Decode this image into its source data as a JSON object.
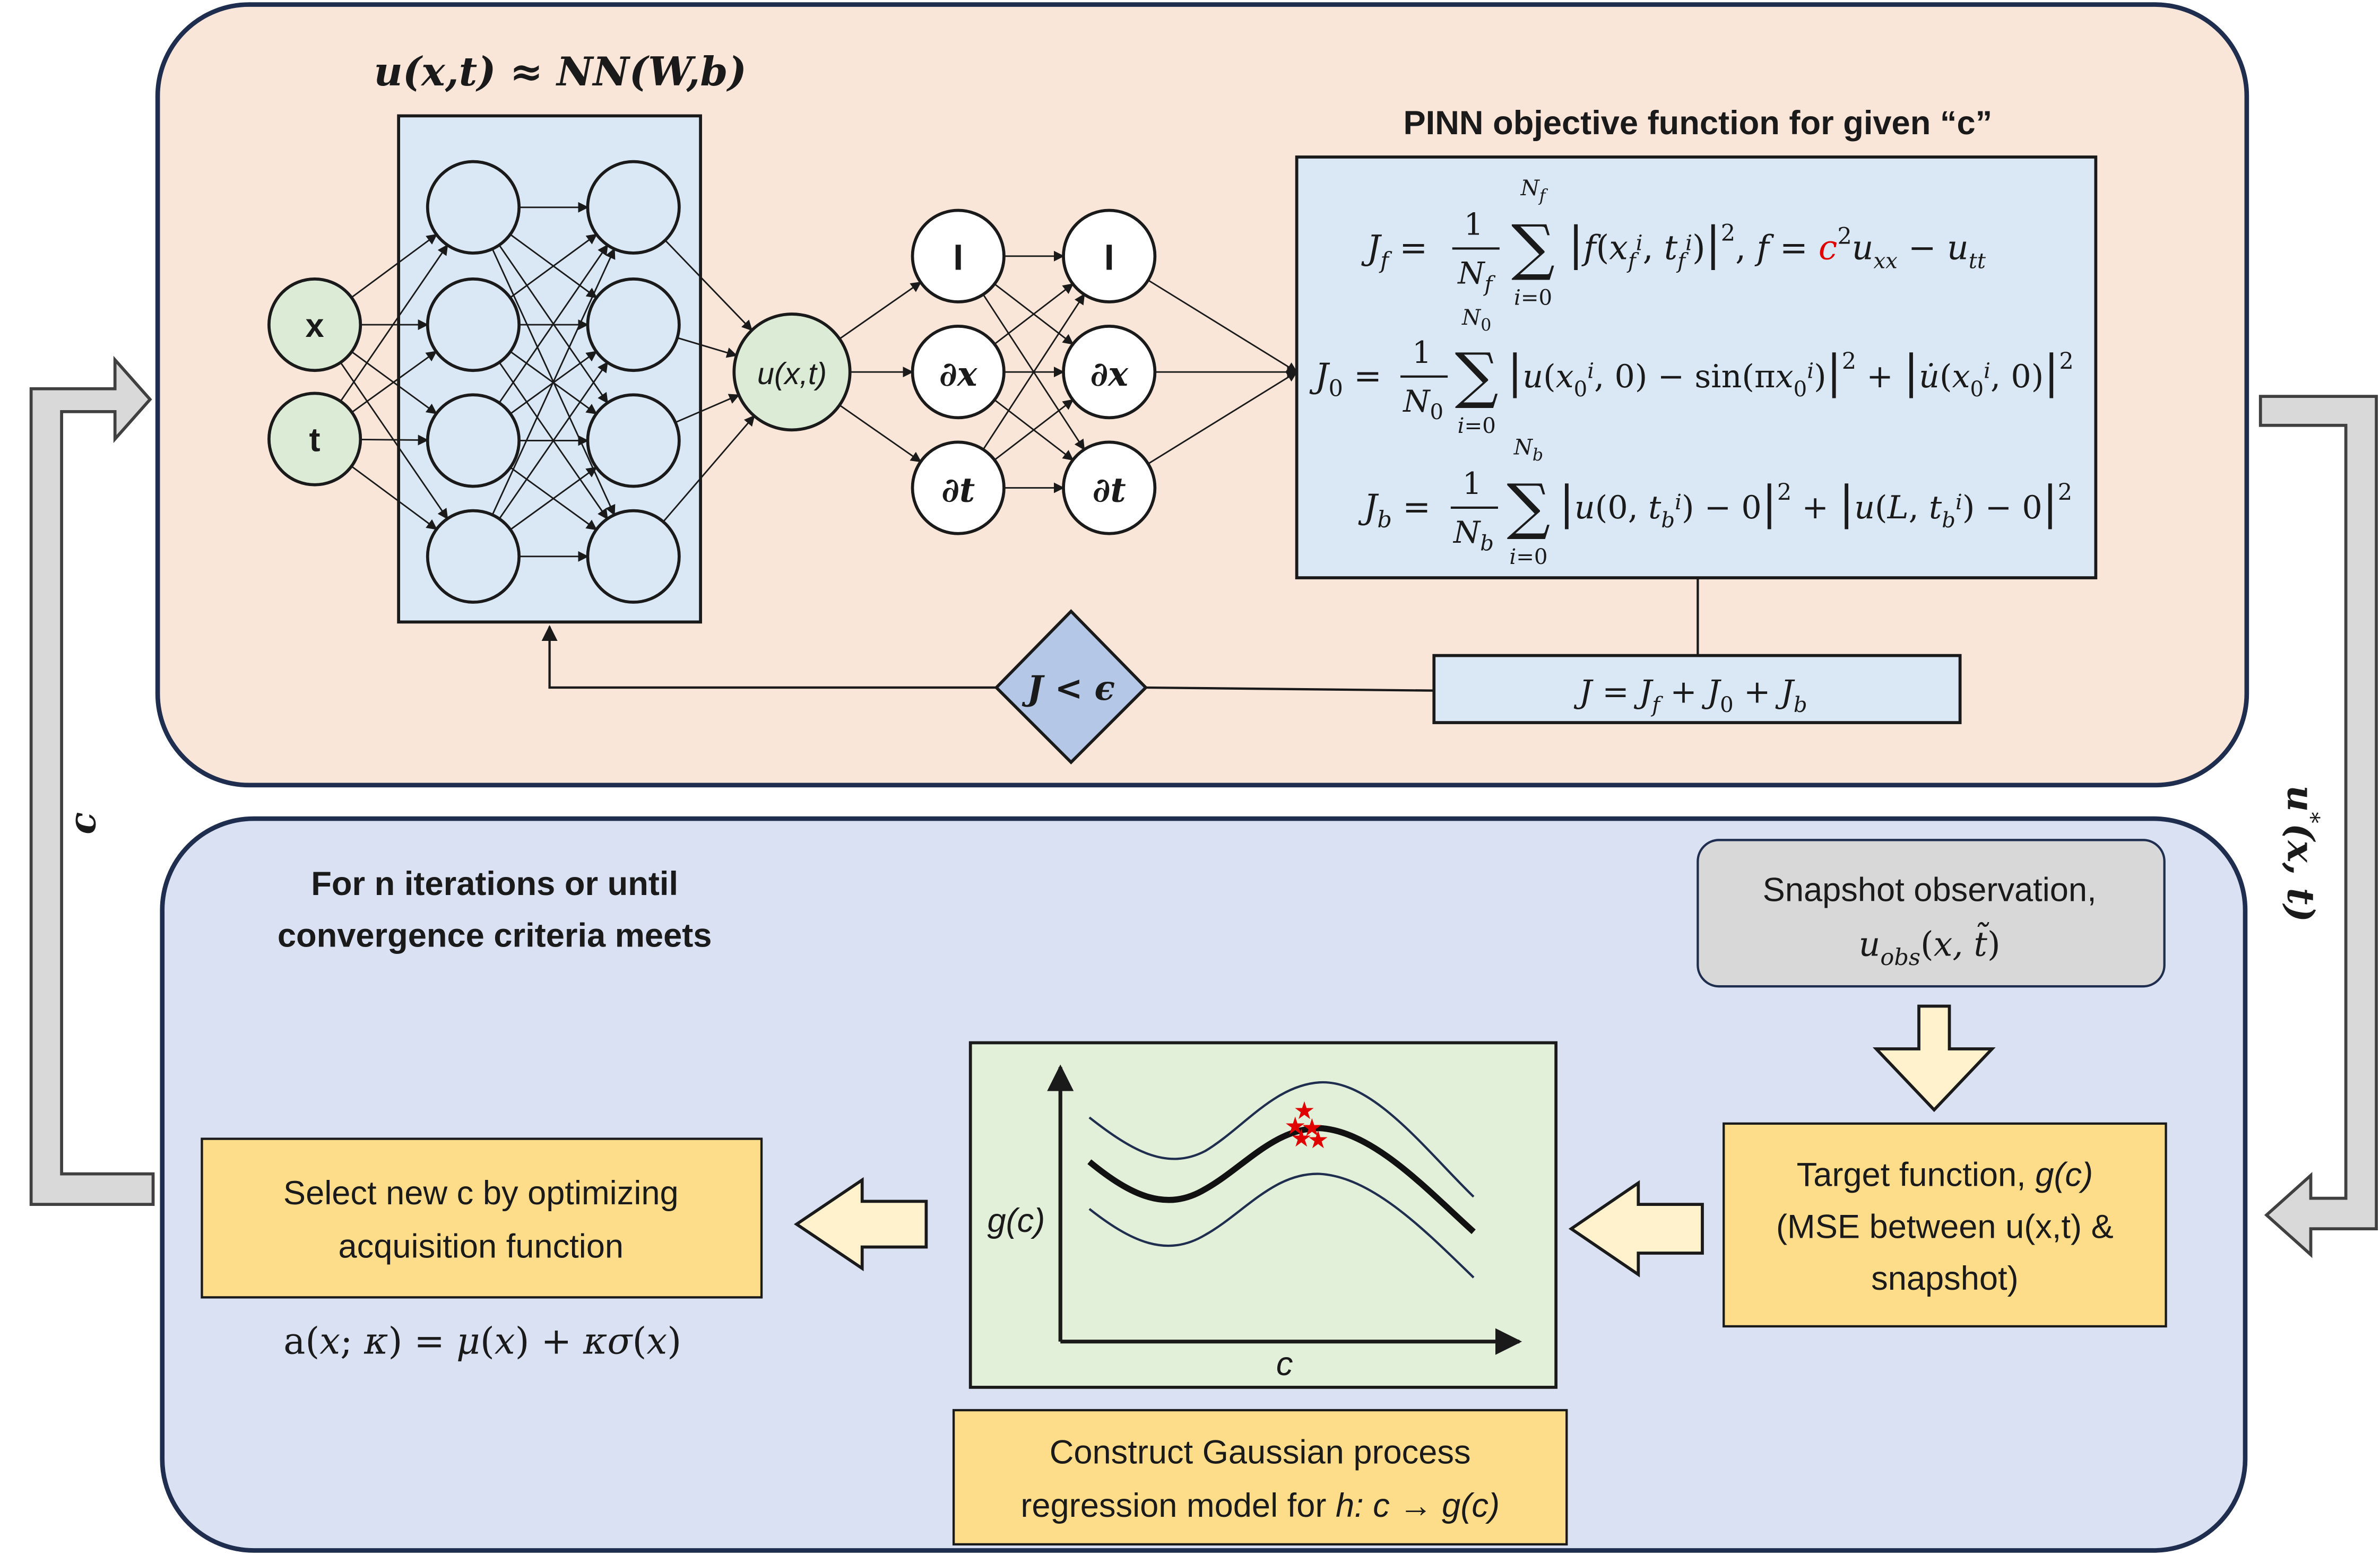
{
  "nn": {
    "title": "u(x,t) ≈ NN(W,b)",
    "inputs": [
      "x",
      "t"
    ],
    "output": "u(x,t)",
    "ops_col1": [
      "I",
      "∂x",
      "∂t"
    ],
    "ops_col2": [
      "I",
      "∂x",
      "∂t"
    ]
  },
  "objective": {
    "title": "PINN objective function for given “c”",
    "Jf": "J_f = 1/N_f Σ_{i=0}^{N_f} |f(x_f^i, t_f^i)|², f = c² u_xx − u_tt",
    "J0": "J_0 = 1/N_0 Σ_{i=0}^{N_0} |u(x_0^i, 0) − sin(πx_0^i)|² + |u̇(x_0^i, 0)|²",
    "Jb": "J_b = 1/N_b Σ_{i=0}^{N_b} |u(0, t_b^i) − 0|² + |u(L, t_b^i) − 0|²",
    "J_total": "J = J_f + J_0 + J_b",
    "condition": "J < ϵ"
  },
  "side_labels": {
    "left": "c",
    "right": "u*(x,t)"
  },
  "bottom": {
    "title_line1": "For n iterations or until",
    "title_line2": "convergence criteria meets",
    "snapshot_line1": "Snapshot observation,",
    "snapshot_line2": "u_obs(x, t̃)",
    "target_line1": "Target function, g(c)",
    "target_line2": "(MSE between u(x,t) &",
    "target_line3": "snapshot)",
    "select_line1": "Select new c by optimizing",
    "select_line2": "acquisition function",
    "acq_formula": "a(x; κ) = μ(x) + κσ(x)",
    "gp_line1": "Construct Gaussian process",
    "gp_line2": "regression model for h: c → g(c)",
    "gp_ylabel": "g(c)",
    "gp_xlabel": "c"
  },
  "colors": {
    "top_panel": "#f9e6d9",
    "bottom_panel": "#d9e1f2",
    "panel_border": "#1f2d4e",
    "nn_box": "#dae8f5",
    "input_node": "#dcebd5",
    "yellow_box": "#fedd8a",
    "pale_arrow": "#fff2cc",
    "gray_box": "#d8d8d8",
    "plot_bg": "#e2efd9",
    "red_marker": "#e00000"
  }
}
